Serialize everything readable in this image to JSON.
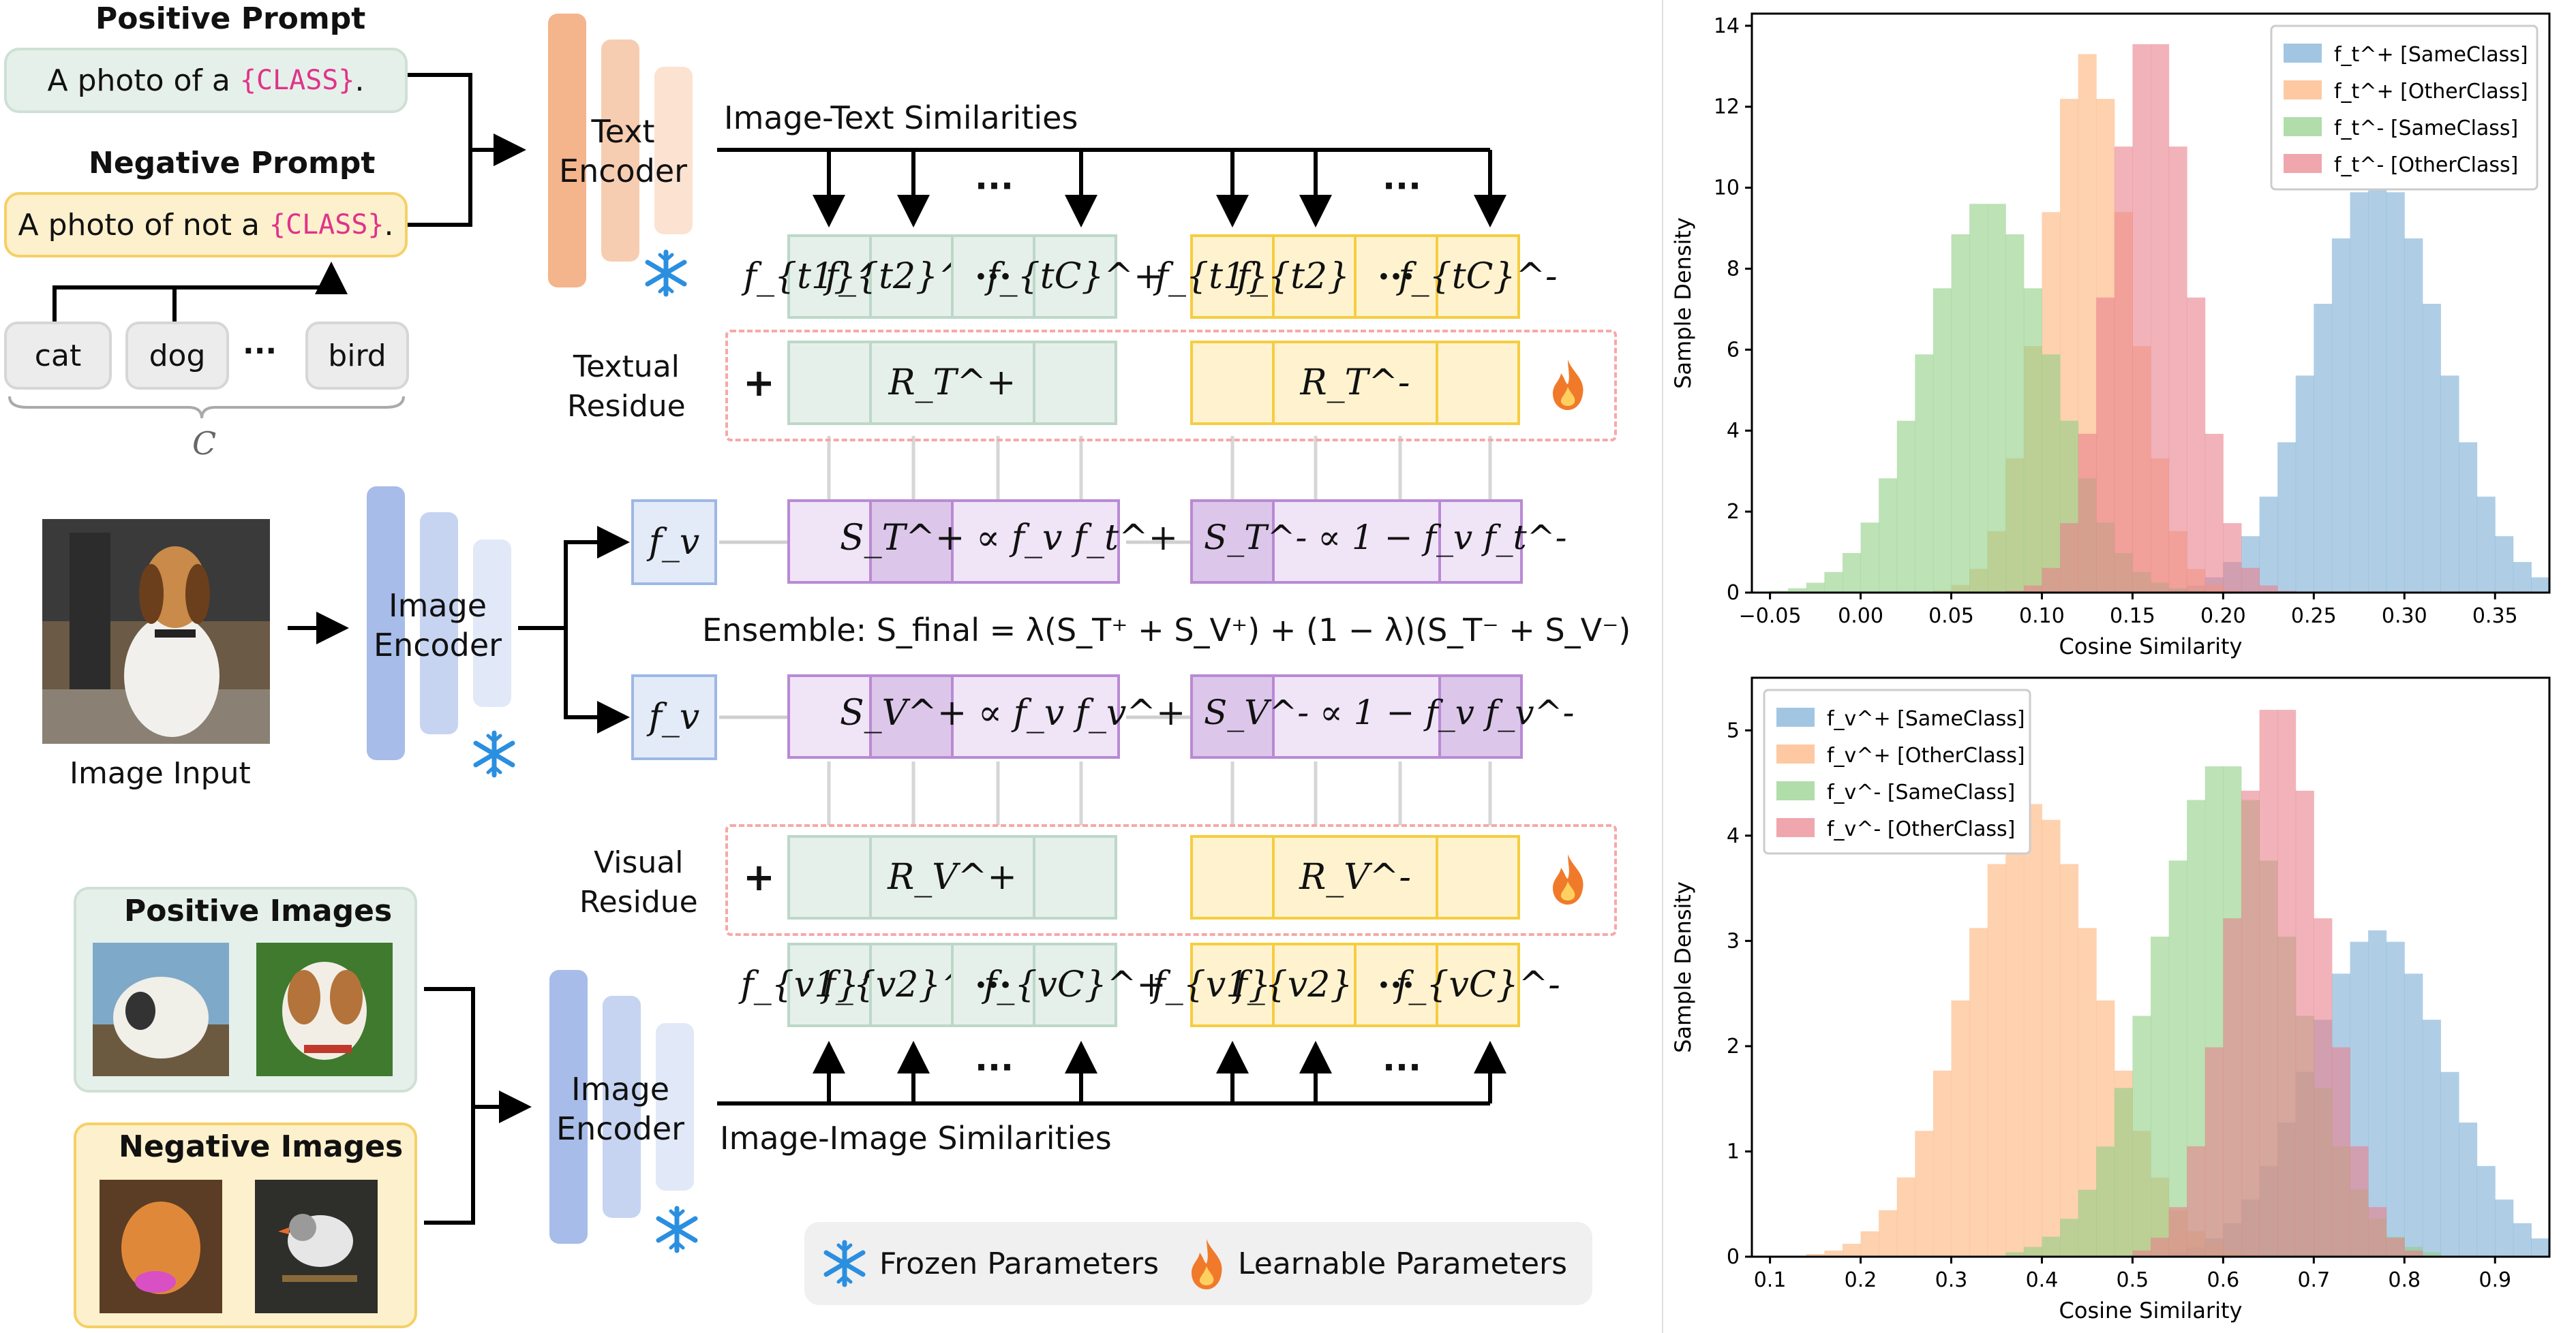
{
  "prompts": {
    "positive_title": "Positive Prompt",
    "positive_text": "A photo of a ",
    "negative_title": "Negative Prompt",
    "negative_text": "A photo of not a ",
    "class_token": "{CLASS}",
    "period": "."
  },
  "classes": {
    "items": [
      "cat",
      "dog",
      "bird"
    ],
    "ellipsis": "···",
    "brace_label": "C"
  },
  "encoders": {
    "text": "Text\nEncoder",
    "image": "Image\nEncoder"
  },
  "labels": {
    "image_text_similarities": "Image-Text Similarities",
    "image_image_similarities": "Image-Image Similarities",
    "textual_residue": "Textual\nResidue",
    "visual_residue": "Visual\nResidue",
    "image_input": "Image Input",
    "positive_images": "Positive Images",
    "negative_images": "Negative Images",
    "plus": "+",
    "ensemble": "Ensemble: S_final = λ(S_T⁺ + S_V⁺) + (1 − λ)(S_T⁻ + S_V⁻)",
    "ensemble_prefix": "Ensemble:"
  },
  "features": {
    "text_pos": [
      "f_{t1}^+",
      "f_{t2}^+",
      "···",
      "f_{tC}^+"
    ],
    "text_neg": [
      "f_{t1}^-",
      "f_{t2}^-",
      "···",
      "f_{tC}^-"
    ],
    "vis_pos": [
      "f_{v1}^+",
      "f_{v2}^+",
      "···",
      "f_{vC}^+"
    ],
    "vis_neg": [
      "f_{v1}^-",
      "f_{v2}^-",
      "···",
      "f_{vC}^-"
    ],
    "fv": "f_v",
    "residue_text_pos": "R_T^+",
    "residue_text_neg": "R_T^-",
    "residue_vis_pos": "R_V^+",
    "residue_vis_neg": "R_V^-",
    "sim_text_pos": "S_T^+ ∝ f_v f_t^+",
    "sim_text_neg": "S_T^- ∝ 1 − f_v f_t^-",
    "sim_vis_pos": "S_V^+ ∝ f_v f_v^+",
    "sim_vis_neg": "S_V^- ∝ 1 − f_v f_v^-"
  },
  "legend": {
    "frozen": "Frozen Parameters",
    "learnable": "Learnable Parameters"
  },
  "colors": {
    "green_bg": "#e6f0ea",
    "yellow_bg": "#fff3cf",
    "purple_bg": "#f0e4f7",
    "orange_enc": "#f4b48c",
    "blue_enc": "#a7bce8",
    "snowflake": "#2b8fe0",
    "fire": "#f07a2a",
    "class_token": "#e0338a"
  },
  "chart_data": [
    {
      "type": "histogram",
      "title": "",
      "xlabel": "Cosine Similarity",
      "ylabel": "Sample Density",
      "xlim": [
        -0.06,
        0.38
      ],
      "ylim": [
        0,
        14.3
      ],
      "xticks": [
        -0.05,
        0.0,
        0.05,
        0.1,
        0.15,
        0.2,
        0.25,
        0.3,
        0.35
      ],
      "xtick_labels": [
        "−0.05",
        "0.00",
        "0.05",
        "0.10",
        "0.15",
        "0.20",
        "0.25",
        "0.30",
        "0.35"
      ],
      "yticks": [
        0,
        2,
        4,
        6,
        8,
        10,
        12,
        14
      ],
      "legend_position": "top-right",
      "series": [
        {
          "name": "f_t^+ [SameClass]",
          "color": "#7aaed6",
          "peak_x": 0.285,
          "peak_y": 10.3,
          "spread": 0.035
        },
        {
          "name": "f_t^+ [OtherClass]",
          "color": "#fdb27a",
          "peak_x": 0.125,
          "peak_y": 13.3,
          "spread": 0.024
        },
        {
          "name": "f_t^- [SameClass]",
          "color": "#8fcf86",
          "peak_x": 0.07,
          "peak_y": 9.7,
          "spread": 0.035
        },
        {
          "name": "f_t^- [OtherClass]",
          "color": "#e8808a",
          "peak_x": 0.16,
          "peak_y": 13.9,
          "spread": 0.022
        }
      ]
    },
    {
      "type": "histogram",
      "title": "",
      "xlabel": "Cosine Similarity",
      "ylabel": "Sample Density",
      "xlim": [
        0.08,
        0.96
      ],
      "ylim": [
        0,
        5.5
      ],
      "xticks": [
        0.1,
        0.2,
        0.3,
        0.4,
        0.5,
        0.6,
        0.7,
        0.8,
        0.9
      ],
      "xtick_labels": [
        "0.1",
        "0.2",
        "0.3",
        "0.4",
        "0.5",
        "0.6",
        "0.7",
        "0.8",
        "0.9"
      ],
      "yticks": [
        0,
        1,
        2,
        3,
        4,
        5
      ],
      "legend_position": "top-left",
      "series": [
        {
          "name": "f_v^+ [SameClass]",
          "color": "#7aaed6",
          "peak_x": 0.77,
          "peak_y": 3.1,
          "spread": 0.075
        },
        {
          "name": "f_v^+ [OtherClass]",
          "color": "#fdb27a",
          "peak_x": 0.39,
          "peak_y": 4.3,
          "spread": 0.075
        },
        {
          "name": "f_v^- [SameClass]",
          "color": "#8fcf86",
          "peak_x": 0.6,
          "peak_y": 4.7,
          "spread": 0.075
        },
        {
          "name": "f_v^- [OtherClass]",
          "color": "#e8808a",
          "peak_x": 0.66,
          "peak_y": 5.3,
          "spread": 0.05
        }
      ]
    }
  ]
}
